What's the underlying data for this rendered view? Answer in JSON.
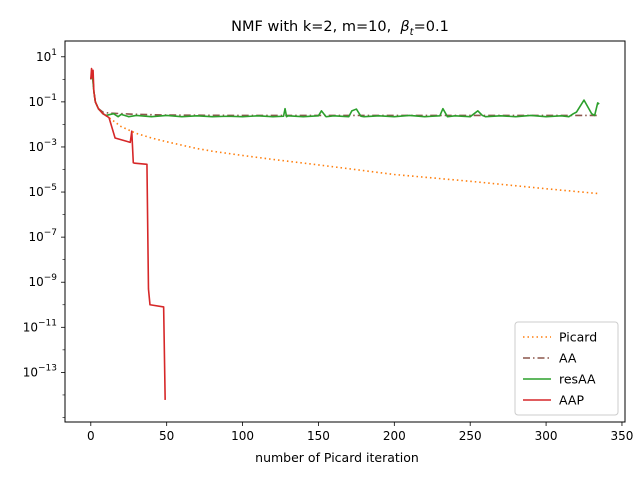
{
  "chart_data": {
    "type": "line",
    "title": "NMF with k=2, m=10,  βt=0.1",
    "title_parts": {
      "main": "NMF with k=2, m=10,  ",
      "beta": "β",
      "beta_sub": "t",
      "tail": "=0.1"
    },
    "xlabel": "number of Picard iteration",
    "ylabel": "",
    "xlim": [
      -17,
      352
    ],
    "ylim_log10": [
      -15.2,
      1.7
    ],
    "y_scale": "log",
    "x_ticks": [
      0,
      50,
      100,
      150,
      200,
      250,
      300,
      350
    ],
    "x_tick_labels": [
      "0",
      "50",
      "100",
      "150",
      "200",
      "250",
      "300",
      "350"
    ],
    "y_ticks_exp": [
      1,
      -1,
      -3,
      -5,
      -7,
      -9,
      -11,
      -13
    ],
    "y_tick_labels": [
      {
        "base": "10",
        "exp": "1"
      },
      {
        "base": "10",
        "exp": "−1"
      },
      {
        "base": "10",
        "exp": "−3"
      },
      {
        "base": "10",
        "exp": "−5"
      },
      {
        "base": "10",
        "exp": "−7"
      },
      {
        "base": "10",
        "exp": "−9"
      },
      {
        "base": "10",
        "exp": "−11"
      },
      {
        "base": "10",
        "exp": "−13"
      }
    ],
    "grid": false,
    "legend_position": "lower-right",
    "series": [
      {
        "name": "Picard",
        "color": "#ff7f0e",
        "dash": "dotted",
        "x": [
          0,
          1,
          2,
          3,
          5,
          8,
          12,
          20,
          30,
          40,
          50,
          60,
          70,
          80,
          100,
          120,
          150,
          200,
          250,
          300,
          335
        ],
        "y": [
          1.0,
          2.0,
          0.3,
          0.1,
          0.05,
          0.03,
          0.02,
          0.008,
          0.004,
          0.0025,
          0.0017,
          0.0012,
          0.00085,
          0.00065,
          0.00042,
          0.00028,
          0.00016,
          6e-05,
          3e-05,
          1.4e-05,
          8.5e-06
        ]
      },
      {
        "name": "AA",
        "color": "#8c564b",
        "dash": "dashdot",
        "x": [
          0,
          1,
          2,
          3,
          5,
          8,
          10,
          12,
          20,
          30,
          50,
          100,
          150,
          200,
          250,
          300,
          335
        ],
        "y": [
          1.0,
          2.0,
          0.3,
          0.1,
          0.05,
          0.035,
          0.033,
          0.032,
          0.03,
          0.028,
          0.026,
          0.025,
          0.025,
          0.025,
          0.025,
          0.025,
          0.025
        ]
      },
      {
        "name": "resAA",
        "color": "#2ca02c",
        "dash": "solid",
        "x": [
          0,
          1,
          2,
          3,
          5,
          8,
          10,
          15,
          18,
          20,
          25,
          30,
          40,
          50,
          60,
          70,
          80,
          90,
          100,
          110,
          120,
          127,
          128,
          129,
          130,
          140,
          150,
          152,
          155,
          158,
          160,
          170,
          172,
          175,
          178,
          180,
          190,
          200,
          210,
          220,
          225,
          230,
          232,
          235,
          240,
          250,
          255,
          258,
          260,
          270,
          280,
          290,
          300,
          310,
          315,
          318,
          320,
          325,
          330,
          332,
          334,
          335
        ],
        "y": [
          1.0,
          2.0,
          0.3,
          0.1,
          0.05,
          0.03,
          0.025,
          0.03,
          0.022,
          0.028,
          0.022,
          0.025,
          0.022,
          0.025,
          0.022,
          0.024,
          0.022,
          0.023,
          0.022,
          0.024,
          0.022,
          0.023,
          0.05,
          0.022,
          0.024,
          0.022,
          0.024,
          0.04,
          0.022,
          0.023,
          0.024,
          0.022,
          0.04,
          0.048,
          0.023,
          0.022,
          0.024,
          0.022,
          0.025,
          0.022,
          0.023,
          0.024,
          0.05,
          0.022,
          0.024,
          0.022,
          0.04,
          0.025,
          0.022,
          0.024,
          0.022,
          0.025,
          0.022,
          0.024,
          0.022,
          0.03,
          0.035,
          0.12,
          0.03,
          0.025,
          0.09,
          0.08
        ]
      },
      {
        "name": "AAP",
        "color": "#d62728",
        "dash": "solid",
        "x": [
          0,
          0.5,
          1,
          1.5,
          2,
          3,
          5,
          8,
          12,
          16,
          26,
          27,
          28,
          29,
          37,
          38,
          39,
          48,
          49
        ],
        "y": [
          1.0,
          3.0,
          1.2,
          2.5,
          0.3,
          0.1,
          0.05,
          0.03,
          0.02,
          0.0025,
          0.0016,
          0.005,
          0.0002,
          0.00019,
          0.00017,
          5e-10,
          1e-10,
          8e-11,
          6e-15
        ]
      }
    ]
  }
}
